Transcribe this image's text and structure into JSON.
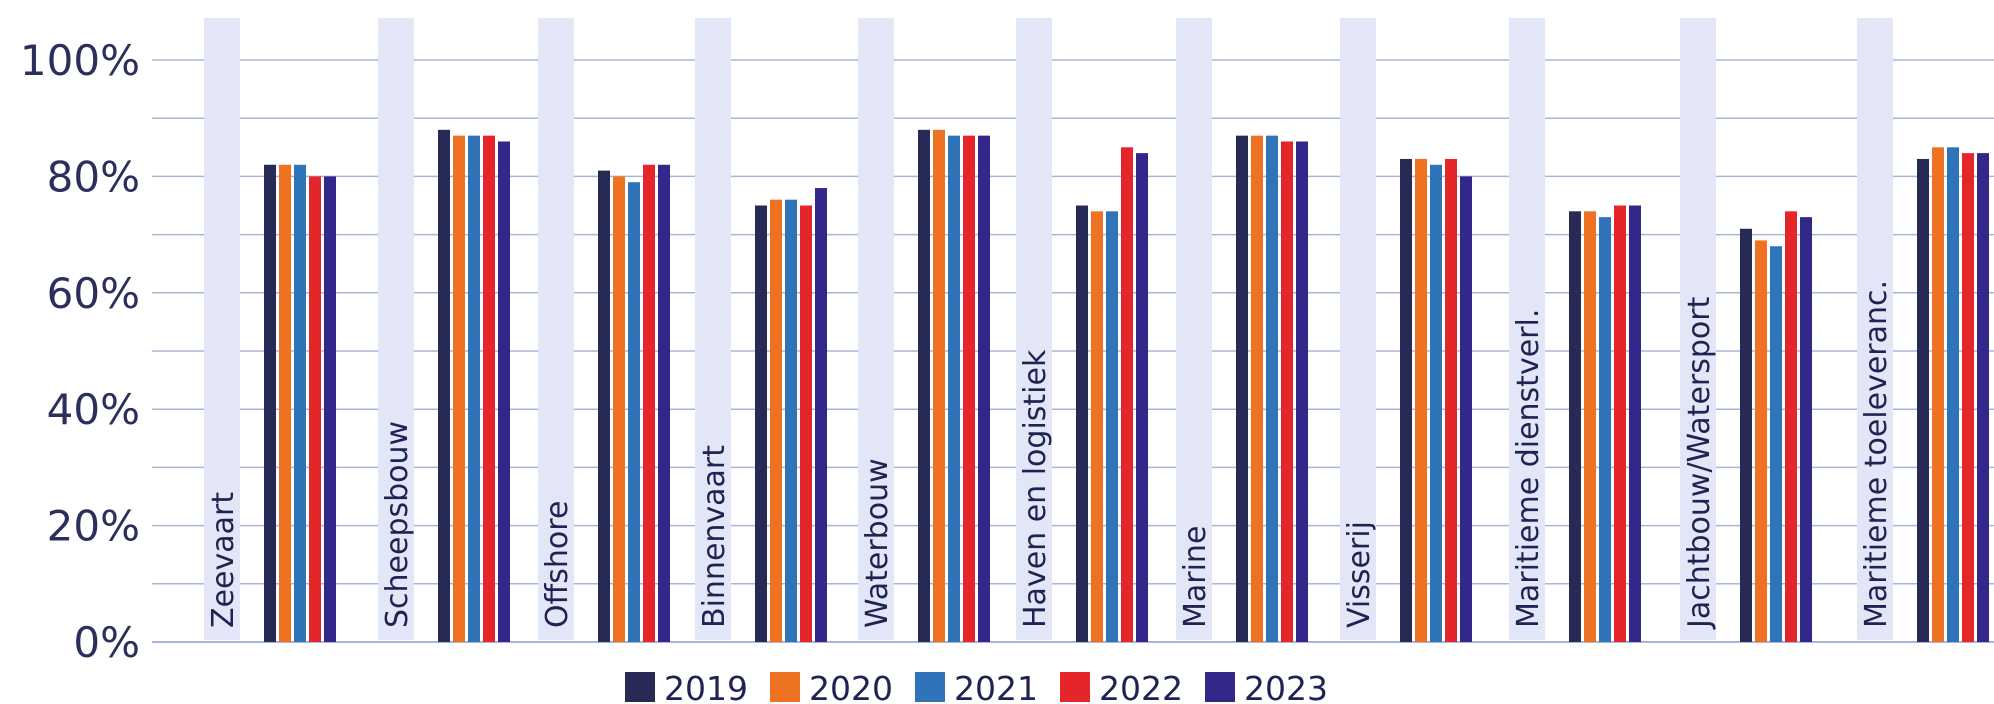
{
  "chart_data": {
    "type": "bar",
    "categories": [
      "Zeevaart",
      "Scheepsbouw",
      "Offshore",
      "Binnenvaart",
      "Waterbouw",
      "Haven en logistiek",
      "Marine",
      "Visserij",
      "Maritieme dienstverl.",
      "Jachtbouw/Watersport",
      "Maritieme toeleveranc."
    ],
    "series": [
      {
        "name": "2019",
        "color": "#262a54",
        "values": [
          82,
          88,
          81,
          75,
          88,
          75,
          87,
          83,
          74,
          71,
          83
        ]
      },
      {
        "name": "2020",
        "color": "#ee7221",
        "values": [
          82,
          87,
          80,
          76,
          88,
          74,
          87,
          83,
          74,
          69,
          85
        ]
      },
      {
        "name": "2021",
        "color": "#2f73b9",
        "values": [
          82,
          87,
          79,
          76,
          87,
          74,
          87,
          82,
          73,
          68,
          85
        ]
      },
      {
        "name": "2022",
        "color": "#e4262a",
        "values": [
          80,
          87,
          82,
          75,
          87,
          85,
          86,
          83,
          75,
          74,
          84
        ]
      },
      {
        "name": "2023",
        "color": "#33288a",
        "values": [
          80,
          86,
          82,
          78,
          87,
          84,
          86,
          80,
          75,
          73,
          84
        ]
      }
    ],
    "yticks": [
      "0%",
      "20%",
      "40%",
      "60%",
      "80%",
      "100%"
    ],
    "ylim": [
      0,
      100
    ],
    "gridlines": true,
    "legend_position": "bottom-center",
    "category_band_color": "#e2e6f6",
    "gridline_color": "#a9b4d8"
  }
}
